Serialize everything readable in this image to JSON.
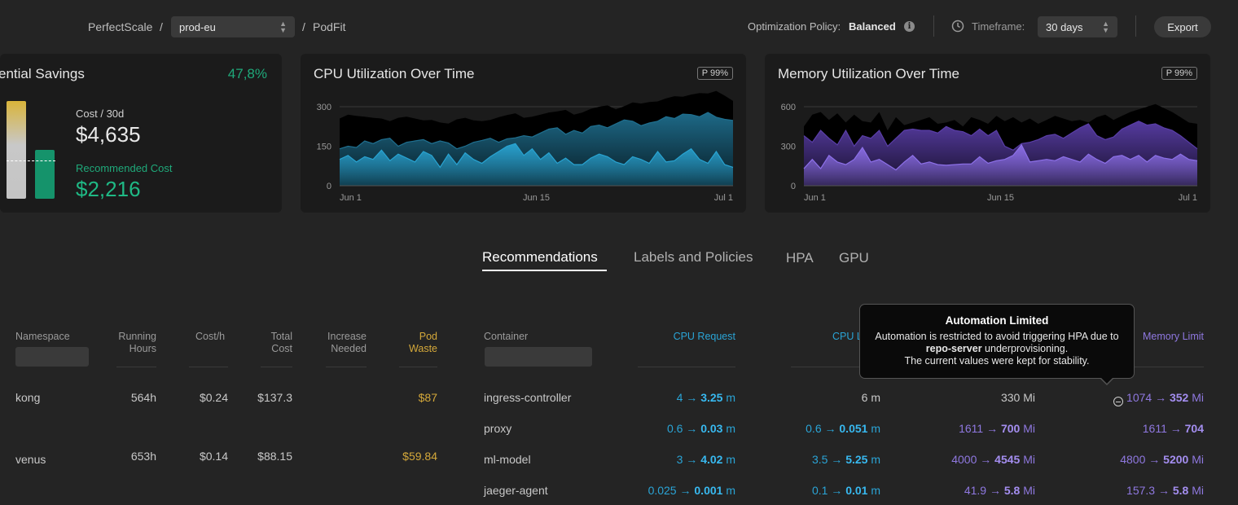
{
  "breadcrumb": {
    "org": "PerfectScale",
    "sep1": "/",
    "cluster": "prod-eu",
    "sep2": "/",
    "page": "PodFit"
  },
  "header": {
    "policy_label": "Optimization Policy:",
    "policy_value": "Balanced",
    "timeframe_label": "Timeframe:",
    "timeframe_value": "30 days",
    "export_label": "Export"
  },
  "savings_card": {
    "title": "ential Savings",
    "percent": "47,8%",
    "cost_label": "Cost / 30d",
    "cost_value": "$4,635",
    "rec_label": "Recommended Cost",
    "rec_value": "$2,216",
    "colors": {
      "percent": "#1fa97a",
      "rec": "#1fa97a"
    }
  },
  "cpu_card": {
    "title": "CPU Utilization Over Time",
    "badge": "P 99%"
  },
  "mem_card": {
    "title": "Memory Utilization Over Time",
    "badge": "P 99%"
  },
  "chart_data": [
    {
      "type": "area",
      "title": "CPU Utilization Over Time",
      "ylim": [
        0,
        300
      ],
      "yticks": [
        "300",
        "150",
        "0"
      ],
      "xticks": [
        "Jun 1",
        "Jun 15",
        "Jul 1"
      ],
      "grid": true,
      "series": [
        {
          "name": "",
          "color": "#000000",
          "values": [
            255,
            270,
            265,
            262,
            258,
            255,
            245,
            258,
            262,
            255,
            248,
            250,
            240,
            236,
            252,
            258,
            248,
            245,
            250,
            260,
            268,
            275,
            258,
            262,
            270,
            278,
            282,
            288,
            270,
            278,
            292,
            300,
            305,
            290,
            302,
            316,
            312,
            318,
            320,
            332,
            340,
            338,
            346,
            352,
            350,
            360,
            342,
            322
          ]
        },
        {
          "name": "",
          "color": "#1f6f8f",
          "values": [
            140,
            150,
            145,
            170,
            160,
            175,
            180,
            150,
            165,
            170,
            175,
            160,
            170,
            162,
            140,
            150,
            165,
            172,
            180,
            165,
            178,
            182,
            190,
            185,
            200,
            215,
            220,
            195,
            210,
            200,
            225,
            230,
            220,
            235,
            250,
            245,
            228,
            238,
            245,
            262,
            255,
            272,
            270,
            262,
            278,
            260,
            252,
            248
          ]
        },
        {
          "name": "",
          "color": "#29a3d1",
          "values": [
            100,
            115,
            90,
            110,
            100,
            135,
            95,
            120,
            105,
            90,
            130,
            115,
            70,
            120,
            80,
            125,
            100,
            85,
            110,
            130,
            150,
            160,
            115,
            140,
            100,
            125,
            85,
            105,
            80,
            80,
            105,
            120,
            110,
            90,
            80,
            110,
            100,
            85,
            130,
            90,
            95,
            120,
            140,
            100,
            85,
            130,
            80,
            70
          ]
        }
      ]
    },
    {
      "type": "area",
      "title": "Memory Utilization Over Time",
      "ylim": [
        0,
        600
      ],
      "yticks": [
        "600",
        "300",
        "0"
      ],
      "xticks": [
        "Jun 1",
        "Jun 15",
        "Jul 1"
      ],
      "grid": true,
      "series": [
        {
          "name": "",
          "color": "#000000",
          "values": [
            450,
            540,
            560,
            500,
            550,
            480,
            540,
            490,
            480,
            560,
            420,
            520,
            460,
            480,
            500,
            520,
            470,
            480,
            500,
            450,
            520,
            500,
            470,
            530,
            490,
            520,
            480,
            510,
            470,
            500,
            530,
            510,
            490,
            500,
            480,
            520,
            540,
            500,
            530,
            560,
            580,
            600,
            620,
            590,
            560,
            520,
            480,
            470
          ]
        },
        {
          "name": "",
          "color": "#5a3ea8",
          "values": [
            380,
            330,
            420,
            360,
            310,
            420,
            300,
            380,
            360,
            420,
            300,
            360,
            420,
            430,
            420,
            420,
            400,
            450,
            420,
            410,
            380,
            430,
            380,
            420,
            300,
            270,
            320,
            330,
            350,
            380,
            390,
            360,
            400,
            440,
            470,
            380,
            350,
            370,
            430,
            460,
            490,
            460,
            470,
            440,
            420,
            380,
            330,
            280
          ]
        },
        {
          "name": "",
          "color": "#8d70e8",
          "values": [
            130,
            200,
            130,
            230,
            180,
            160,
            200,
            290,
            180,
            200,
            160,
            120,
            180,
            230,
            165,
            180,
            160,
            155,
            160,
            165,
            165,
            220,
            170,
            190,
            200,
            230,
            310,
            180,
            190,
            200,
            190,
            220,
            200,
            180,
            240,
            200,
            170,
            220,
            230,
            200,
            230,
            180,
            230,
            210,
            200,
            240,
            200,
            190
          ]
        }
      ]
    }
  ],
  "tabs": [
    {
      "label": "Recommendations",
      "active": true
    },
    {
      "label": "Labels and Policies",
      "active": false
    },
    {
      "label": "HPA",
      "active": false
    },
    {
      "label": "GPU",
      "active": false
    }
  ],
  "table": {
    "headers": {
      "namespace": "Namespace",
      "running_hours": [
        "Running",
        "Hours"
      ],
      "cost_h": "Cost/h",
      "total_cost": [
        "Total",
        "Cost"
      ],
      "increase_needed": [
        "Increase",
        "Needed"
      ],
      "pod_waste": [
        "Pod",
        "Waste"
      ],
      "container": "Container",
      "cpu_request": "CPU Request",
      "cpu_limit": "CPU L",
      "memory_limit": "Memory Limit"
    },
    "pod_rows": [
      {
        "namespace": "kong",
        "running_hours": "564h",
        "cost_h": "$0.24",
        "total_cost": "$137.3",
        "increase_needed": "",
        "pod_waste": "$87"
      },
      {
        "namespace": "venus",
        "running_hours": "653h",
        "cost_h": "$0.14",
        "total_cost": "$88.15",
        "increase_needed": "",
        "pod_waste": "$59.84"
      }
    ],
    "container_rows": [
      {
        "container": "ingress-controller",
        "cpu_req_from": "4 →",
        "cpu_req_to": "3.25",
        "cpu_req_unit": "m",
        "cpu_lim_from": "6 m",
        "cpu_lim_to": "",
        "cpu_lim_unit": "",
        "mem_req_from": "330 Mi",
        "mem_req_to": "",
        "mem_req_unit": "",
        "mem_lim_from": "1074 →",
        "mem_lim_to": "352",
        "mem_lim_unit": "Mi"
      },
      {
        "container": "proxy",
        "cpu_req_from": "0.6 →",
        "cpu_req_to": "0.03",
        "cpu_req_unit": "m",
        "cpu_lim_from": "0.6 →",
        "cpu_lim_to": "0.051",
        "cpu_lim_unit": "m",
        "mem_req_from": "1611 →",
        "mem_req_to": "700",
        "mem_req_unit": "Mi",
        "mem_lim_from": "1611 →",
        "mem_lim_to": "704",
        "mem_lim_unit": ""
      },
      {
        "container": "ml-model",
        "cpu_req_from": "3 →",
        "cpu_req_to": "4.02",
        "cpu_req_unit": "m",
        "cpu_lim_from": "3.5 →",
        "cpu_lim_to": "5.25",
        "cpu_lim_unit": "m",
        "mem_req_from": "4000 →",
        "mem_req_to": "4545",
        "mem_req_unit": "Mi",
        "mem_lim_from": "4800 →",
        "mem_lim_to": "5200",
        "mem_lim_unit": "Mi"
      },
      {
        "container": "jaeger-agent",
        "cpu_req_from": "0.025 →",
        "cpu_req_to": "0.001",
        "cpu_req_unit": "m",
        "cpu_lim_from": "0.1 →",
        "cpu_lim_to": "0.01",
        "cpu_lim_unit": "m",
        "mem_req_from": "41.9 →",
        "mem_req_to": "5.8",
        "mem_req_unit": "Mi",
        "mem_lim_from": "157.3 →",
        "mem_lim_to": "5.8",
        "mem_lim_unit": "Mi"
      }
    ]
  },
  "tooltip": {
    "title": "Automation Limited",
    "line1": "Automation is restricted to avoid triggering HPA due to",
    "line2_bold": "repo-server",
    "line2_rest": " underprovisioning.",
    "line3": "The current values were kept for stability."
  }
}
